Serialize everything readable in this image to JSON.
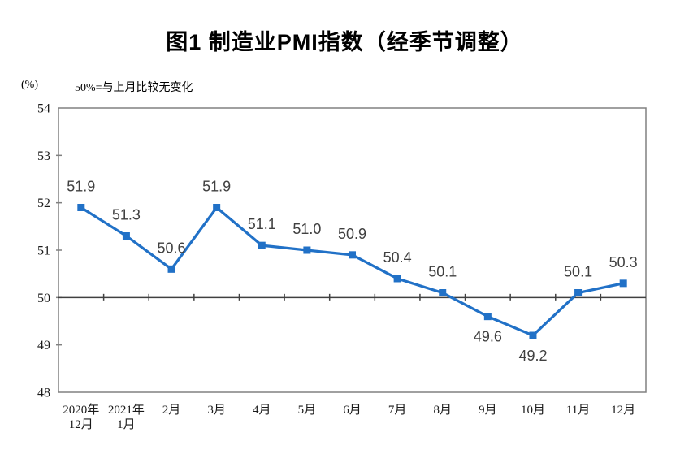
{
  "chart_data": {
    "type": "line",
    "title": "图1 制造业PMI指数（经季节调整）",
    "y_unit_label": "(%)",
    "note": "50%=与上月比较无变化",
    "categories": [
      "2020年\n12月",
      "2021年\n1月",
      "2月",
      "3月",
      "4月",
      "5月",
      "6月",
      "7月",
      "8月",
      "9月",
      "10月",
      "11月",
      "12月"
    ],
    "values": [
      51.9,
      51.3,
      50.6,
      51.9,
      51.1,
      51.0,
      50.9,
      50.4,
      50.1,
      49.6,
      49.2,
      50.1,
      50.3
    ],
    "label_positions": [
      "above",
      "above",
      "above",
      "above",
      "above",
      "above",
      "above",
      "above",
      "above",
      "below",
      "below",
      "above",
      "above"
    ],
    "ylim": [
      48,
      54
    ],
    "yticks": [
      48,
      49,
      50,
      51,
      52,
      53,
      54
    ],
    "baseline": 50,
    "grid": "off",
    "legend": "none",
    "colors": {
      "line": "#2171C7",
      "marker": "#2171C7",
      "plot_border": "#808080",
      "baseline_line": "#404040",
      "data_label": "#404040",
      "axis_text": "#1A1A1A",
      "title_text": "#000000"
    }
  }
}
